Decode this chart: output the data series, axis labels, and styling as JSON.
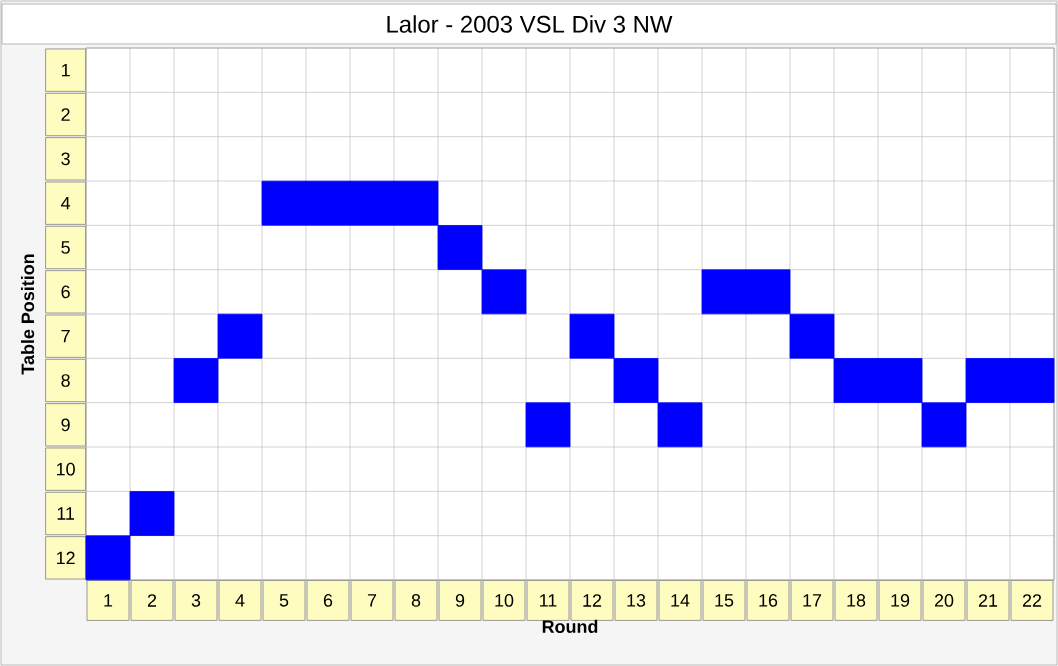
{
  "chart_data": {
    "type": "scatter",
    "title": "Lalor - 2003 VSL Div 3 NW",
    "xlabel": "Round",
    "ylabel": "Table Position",
    "categories": [
      "1",
      "2",
      "3",
      "4",
      "5",
      "6",
      "7",
      "8",
      "9",
      "10",
      "11",
      "12",
      "13",
      "14",
      "15",
      "16",
      "17",
      "18",
      "19",
      "20",
      "21",
      "22"
    ],
    "series": [
      {
        "color": "#0000ff",
        "values": [
          12,
          11,
          8,
          7,
          4,
          4,
          4,
          4,
          5,
          6,
          9,
          7,
          8,
          9,
          6,
          6,
          7,
          8,
          8,
          9,
          8,
          8
        ]
      }
    ],
    "ylim": [
      12.5,
      0.5
    ],
    "yticks": [
      1,
      2,
      3,
      4,
      5,
      6,
      7,
      8,
      9,
      10,
      11,
      12
    ],
    "grid": true,
    "marker": "square"
  }
}
